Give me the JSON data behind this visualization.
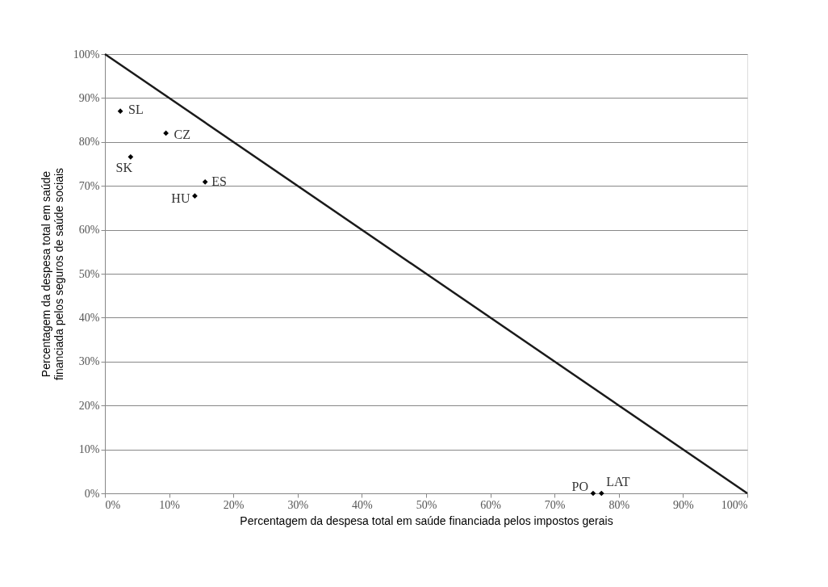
{
  "chart_data": {
    "type": "scatter",
    "xlabel": "Percentagem da despesa total em saúde financiada pelos impostos gerais",
    "ylabel": "Percentagem da despesa total em saúde\nfinanciada pelos seguros de saúde sociais",
    "series": [
      {
        "color": "#000000",
        "marker": "diamond",
        "x": [
          2.4,
          9.5,
          4.0,
          15.6,
          14.0,
          76.0,
          77.3
        ],
        "values": [
          87.0,
          82.0,
          76.6,
          70.9,
          67.7,
          0,
          0
        ]
      },
      {
        "type": "line",
        "color": "#1a1a1a",
        "marker": "none",
        "x": [
          0,
          100
        ],
        "values": [
          100,
          0
        ]
      }
    ],
    "annotations": [
      {
        "text": "SL",
        "x": 2.4,
        "y": 87.0
      },
      {
        "text": "CZ",
        "x": 9.5,
        "y": 82.0
      },
      {
        "text": "SK",
        "x": 4.0,
        "y": 76.6
      },
      {
        "text": "ES",
        "x": 15.6,
        "y": 70.9
      },
      {
        "text": "HU",
        "x": 14.0,
        "y": 67.7
      },
      {
        "text": "PO",
        "x": 76.0,
        "y": 0
      },
      {
        "text": "LAT",
        "x": 77.3,
        "y": 0
      }
    ],
    "xlim": [
      0,
      100
    ],
    "ylim": [
      0,
      100
    ],
    "xticks": [
      {
        "value": 0,
        "label": "0%"
      },
      {
        "value": 10,
        "label": "10%"
      },
      {
        "value": 20,
        "label": "20%"
      },
      {
        "value": 30,
        "label": "30%"
      },
      {
        "value": 40,
        "label": "40%"
      },
      {
        "value": 50,
        "label": "50%"
      },
      {
        "value": 60,
        "label": "60%"
      },
      {
        "value": 70,
        "label": "70%"
      },
      {
        "value": 80,
        "label": "80%"
      },
      {
        "value": 90,
        "label": "90%"
      },
      {
        "value": 100,
        "label": "100%"
      }
    ],
    "yticks": [
      {
        "value": 0,
        "label": "0%"
      },
      {
        "value": 10,
        "label": "10%"
      },
      {
        "value": 20,
        "label": "20%"
      },
      {
        "value": 30,
        "label": "30%"
      },
      {
        "value": 40,
        "label": "40%"
      },
      {
        "value": 50,
        "label": "50%"
      },
      {
        "value": 60,
        "label": "60%"
      },
      {
        "value": 70,
        "label": "70%"
      },
      {
        "value": 80,
        "label": "80%"
      },
      {
        "value": 90,
        "label": "90%"
      },
      {
        "value": 100,
        "label": "100%"
      }
    ],
    "grid": "y"
  }
}
